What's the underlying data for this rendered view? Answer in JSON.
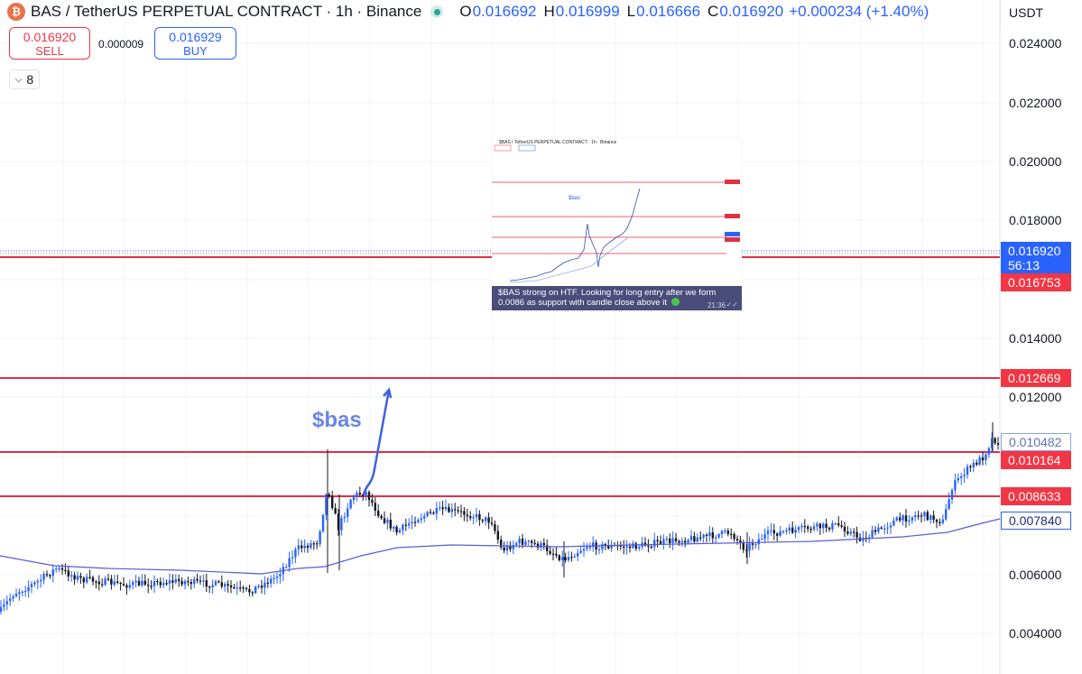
{
  "header": {
    "coin_icon": "coin-icon",
    "title": "BAS / TetherUS PERPETUAL CONTRACT · 1h · Binance",
    "ohlc": [
      {
        "label": "O",
        "value": "0.016692"
      },
      {
        "label": "H",
        "value": "0.016999"
      },
      {
        "label": "L",
        "value": "0.016666"
      },
      {
        "label": "C",
        "value": "0.016920"
      }
    ],
    "change": "+0.000234 (+1.40%)",
    "currency": "USDT"
  },
  "trade": {
    "sell_price": "0.016920",
    "sell_label": "SELL",
    "spread": "0.000009",
    "buy_price": "0.016929",
    "buy_label": "BUY"
  },
  "indicators_toggle": {
    "icon": "chevron-down-icon",
    "count": "8"
  },
  "price_axis": {
    "labels": [
      "0.024000",
      "0.022000",
      "0.020000",
      "0.018000",
      "0.014000",
      "0.012000",
      "0.006000",
      "0.004000"
    ]
  },
  "tags": {
    "current_price": "0.016920",
    "countdown": "56:13",
    "level_1": "0.016753",
    "level_2": "0.012669",
    "level_3": "0.010482",
    "level_4": "0.010164",
    "level_5": "0.008633",
    "level_6": "0.007840"
  },
  "annotation": {
    "text": "$bas"
  },
  "inset": {
    "title": "$BAS / TetherUS PERPETUAL CONTRACT · 1h · Binance",
    "label": "$bas",
    "caption": "$BAS strong on HTF. Looking for long entry after we form 0.0086 as support with candle close above it",
    "caption_icon": "green-circle-icon",
    "time": "21:36",
    "read_icon": "double-check-icon"
  },
  "colors": {
    "candle_blue": "#2962ff",
    "candle_dark": "#131722",
    "level_red": "#e03141",
    "ma_line": "#5b5bd6",
    "annotation_blue": "#3d62e0"
  }
}
